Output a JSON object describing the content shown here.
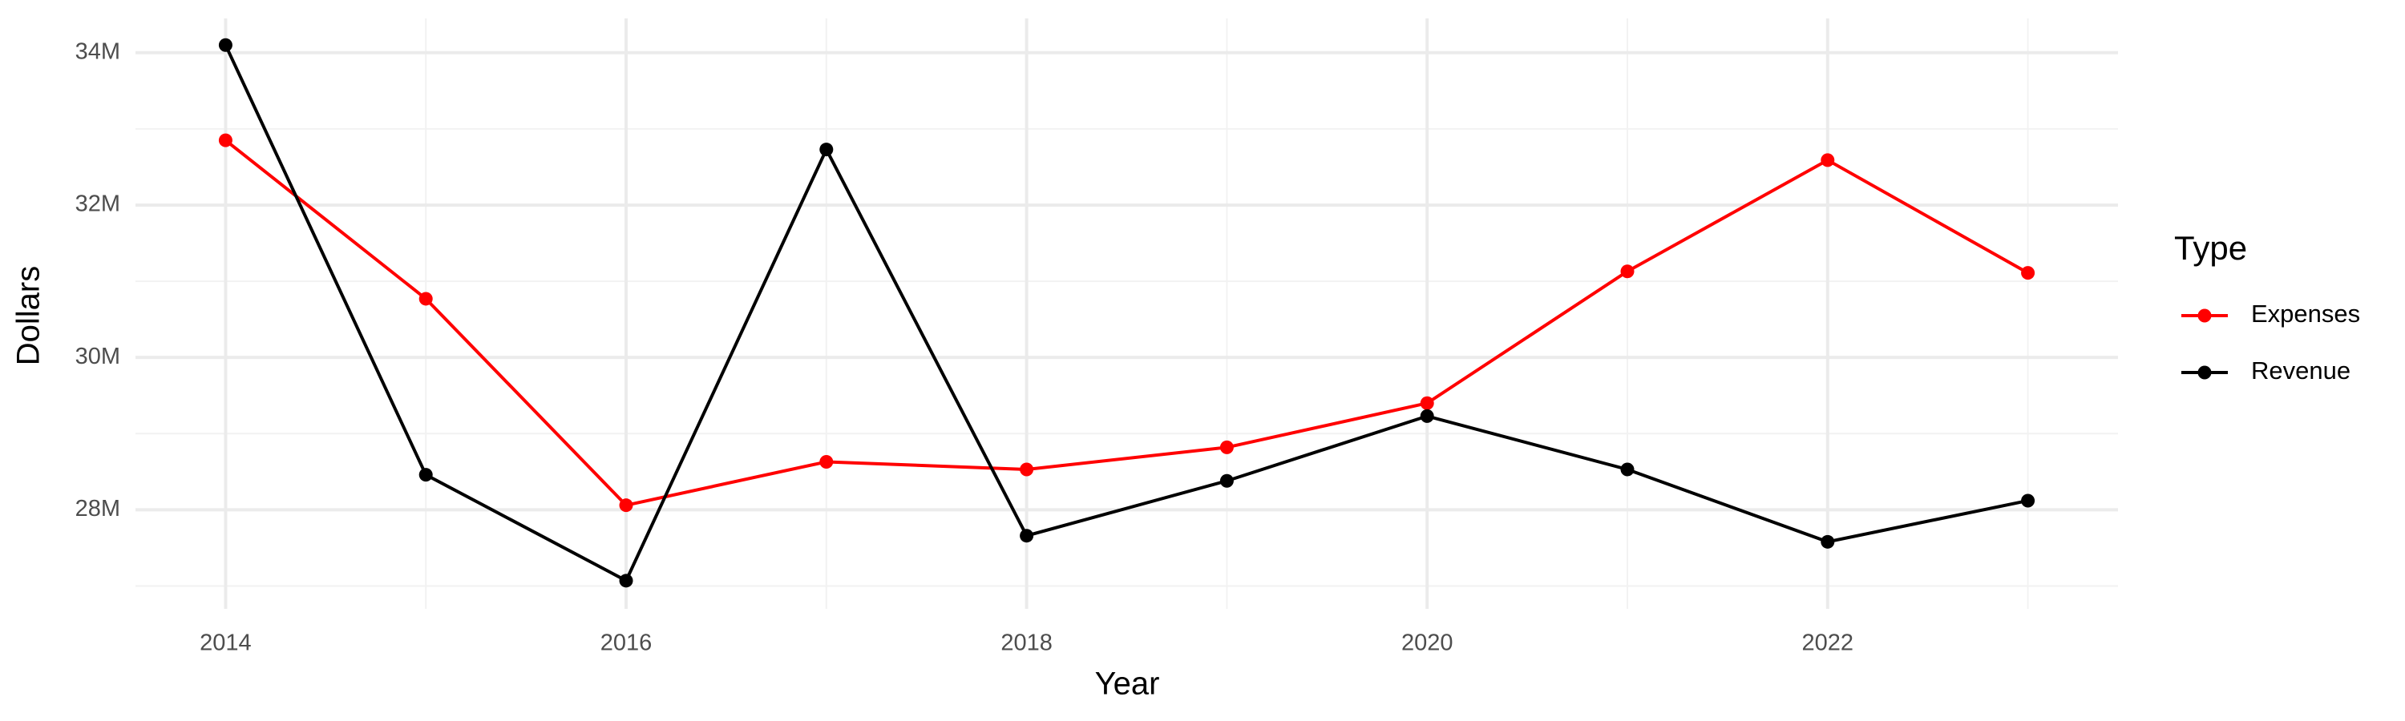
{
  "chart_data": {
    "type": "line",
    "x_label": "Year",
    "y_label": "Dollars",
    "legend_title": "Type",
    "x": [
      2014,
      2015,
      2016,
      2017,
      2018,
      2019,
      2020,
      2021,
      2022,
      2023
    ],
    "series": [
      {
        "name": "Expenses",
        "color": "#ff0000",
        "values": [
          32850000,
          30770000,
          28060000,
          28630000,
          28530000,
          28820000,
          29400000,
          31130000,
          32590000,
          31110000
        ]
      },
      {
        "name": "Revenue",
        "color": "#000000",
        "values": [
          34100000,
          28460000,
          27070000,
          32730000,
          27660000,
          28380000,
          29230000,
          28530000,
          27580000,
          28120000
        ]
      }
    ],
    "xlim": [
      2013.55,
      2023.45
    ],
    "xticks": [
      2014,
      2016,
      2018,
      2020,
      2022
    ],
    "minor_xticks": [
      2015,
      2017,
      2019,
      2021,
      2023
    ],
    "ylim": [
      26700000,
      34450000
    ],
    "yticks": [
      {
        "value": 28000000,
        "label": "28M"
      },
      {
        "value": 30000000,
        "label": "30M"
      },
      {
        "value": 32000000,
        "label": "32M"
      },
      {
        "value": 34000000,
        "label": "34M"
      }
    ],
    "minor_yticks": [
      27000000,
      29000000,
      31000000,
      33000000
    ],
    "grid": true,
    "legend_position": "right"
  }
}
